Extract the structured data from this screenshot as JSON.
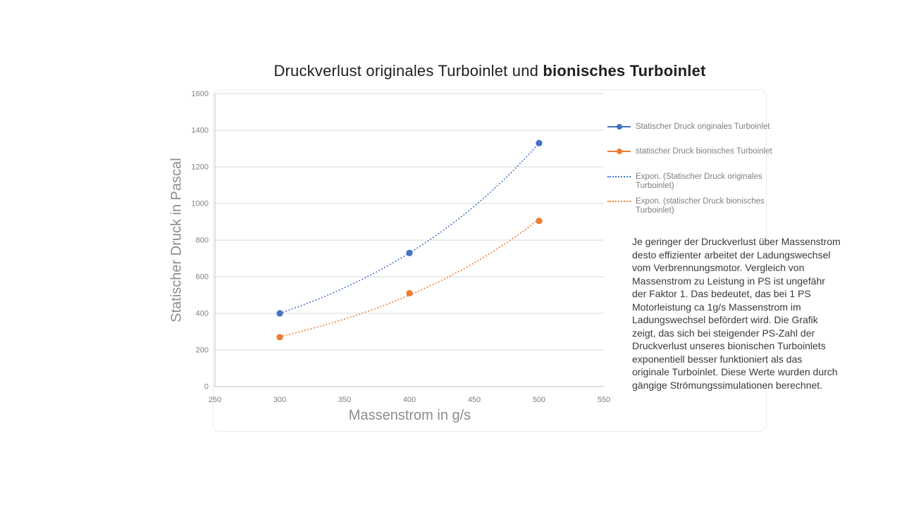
{
  "slide": {
    "title": {
      "regular": "Druckverlust originales Turboinlet und ",
      "bold": "bionisches Turboinlet"
    },
    "description": "Je geringer der Druckverlust über Massenstrom desto effizienter arbeitet der Ladungswechsel vom Verbrennungsmotor. Vergleich von Massenstrom zu Leistung in PS ist ungefähr der Faktor 1. Das bedeutet, das bei 1 PS Motorleistung ca 1g/s Massenstrom im Ladungswechsel befördert wird. Die Grafik zeigt, das sich bei steigender PS-Zahl der Druckverlust unseres bionischen Turboinlets exponentiell besser funktioniert als das originale Turboinlet. Diese Werte wurden durch gängige Strömungssimulationen berechnet."
  },
  "chart_data": {
    "type": "scatter",
    "title": "Druckverlust originales Turboinlet und bionisches Turboinlet",
    "x": [
      300,
      400,
      500
    ],
    "series": [
      {
        "name": "Statischer Druck originales Turboinlet",
        "values": [
          400,
          730,
          1330
        ],
        "color": "#4472C4",
        "marker": "circle"
      },
      {
        "name": "statischer Druck bionisches Turboinlet",
        "values": [
          270,
          510,
          905
        ],
        "color": "#ED7D31",
        "marker": "circle"
      }
    ],
    "trendlines": [
      {
        "name": "Expon. (Statischer Druck originales Turboinlet)",
        "series": 0,
        "fit": "exponential",
        "style": "dotted"
      },
      {
        "name": "Expon. (statischer Druck bionisches Turboinlet)",
        "series": 1,
        "fit": "exponential",
        "style": "dotted"
      }
    ],
    "xlabel": "Massenstrom in g/s",
    "ylabel": "Statischer Druck in Pascal",
    "xlim": [
      250,
      550
    ],
    "xstep": 50,
    "ylim": [
      0,
      1600
    ],
    "ystep": 200,
    "grid": "horizontal",
    "legend_position": "right",
    "colors": {
      "gridline": "#d9d9d9",
      "axis_line": "#bfbfbf",
      "tick_label": "#7f7f7f",
      "axis_title": "#8c8c8c",
      "legend_text": "#7f7f7f",
      "title_text": "#1f1f1f",
      "body_text": "#3a3a3a",
      "series_blue": "#4472C4",
      "series_orange": "#ED7D31"
    }
  }
}
